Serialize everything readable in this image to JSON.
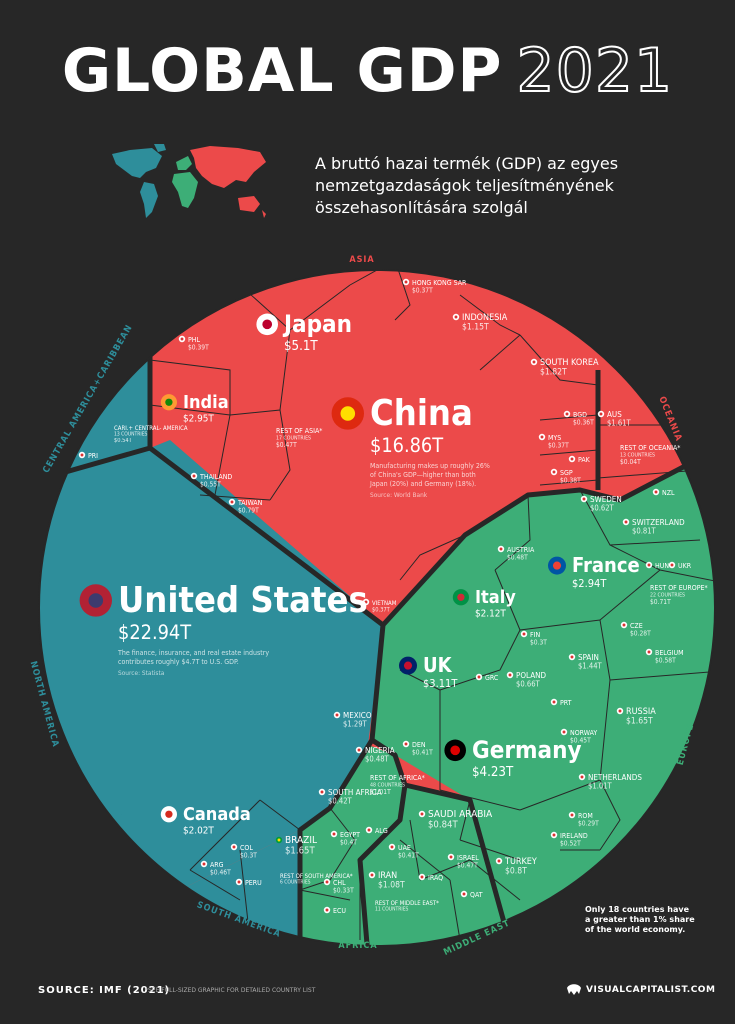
{
  "header": {
    "title_main": "GLOBAL GDP",
    "title_year": "2021",
    "subtitle": "A bruttó hazai termék (GDP) az egyes nemzetgazdaságok teljesítményének összehasonlítására szolgál"
  },
  "footer": {
    "source": "SOURCE: IMF (2021)",
    "footnote": "*SEE FULL-SIZED GRAPHIC FOR DETAILED COUNTRY LIST",
    "credit": "VISUALCAPITALIST.COM",
    "note": "Only 18 countries have a greater than 1% share of the world economy."
  },
  "colors": {
    "background": "#272727",
    "asia": "#EC4A4A",
    "north_america": "#2E8E9B",
    "europe": "#3DAE77",
    "oceania": "#EC4A4A",
    "south_america": "#2E8E9B",
    "africa": "#3DAE77",
    "middle_east": "#3DAE77",
    "central_america": "#2E8E9B"
  },
  "chart_data": {
    "type": "voronoi treemap",
    "regions": [
      "ASIA",
      "OCEANIA",
      "EUROPE",
      "MIDDLE EAST",
      "AFRICA",
      "SOUTH AMERICA",
      "NORTH AMERICA",
      "CENTRAL AMERICA+CARIBBEAN"
    ],
    "countries": [
      {
        "name": "China",
        "value": "$16.86T",
        "region": "Asia",
        "note": "Manufacturing makes up roughly 26% of China's GDP—higher than both Japan (20%) and Germany (18%).",
        "note_source": "Source: World Bank"
      },
      {
        "name": "Japan",
        "value": "$5.1T",
        "region": "Asia"
      },
      {
        "name": "India",
        "value": "$2.95T",
        "region": "Asia"
      },
      {
        "name": "INDONESIA",
        "value": "$1.15T",
        "region": "Asia"
      },
      {
        "name": "SOUTH KOREA",
        "value": "$1.82T",
        "region": "Asia"
      },
      {
        "name": "HONG KONG SAR",
        "value": "$0.37T",
        "region": "Asia"
      },
      {
        "name": "PHL",
        "value": "$0.39T",
        "region": "Asia"
      },
      {
        "name": "REST OF ASIA*",
        "value": "$0.47T",
        "sub": "17 COUNTRIES",
        "region": "Asia"
      },
      {
        "name": "THAILAND",
        "value": "$0.55T",
        "region": "Asia"
      },
      {
        "name": "TAIWAN",
        "value": "$0.79T",
        "region": "Asia"
      },
      {
        "name": "BGD",
        "value": "$0.36T",
        "region": "Asia"
      },
      {
        "name": "MYS",
        "value": "$0.37T",
        "region": "Asia"
      },
      {
        "name": "PAK",
        "region": "Asia"
      },
      {
        "name": "SGP",
        "value": "$0.38T",
        "region": "Asia"
      },
      {
        "name": "VIETNAM",
        "value": "$0.37T",
        "region": "Asia"
      },
      {
        "name": "AUS",
        "value": "$1.61T",
        "region": "Oceania"
      },
      {
        "name": "REST OF OCEANIA*",
        "value": "$0.04T",
        "sub": "13 COUNTRIES",
        "region": "Oceania"
      },
      {
        "name": "NZL",
        "region": "Oceania"
      },
      {
        "name": "United States",
        "value": "$22.94T",
        "region": "North America",
        "note": "The finance, insurance, and real estate industry contributes roughly $4.7T to U.S. GDP.",
        "note_source": "Source: Statista"
      },
      {
        "name": "Canada",
        "value": "$2.02T",
        "region": "North America"
      },
      {
        "name": "MEXICO",
        "value": "$1.29T",
        "region": "North America"
      },
      {
        "name": "CARI.+ CENTRAL- AMERICA",
        "value": "$0.54T",
        "sub": "13 COUNTRIES",
        "region": "Central America+Caribbean"
      },
      {
        "name": "PRI",
        "region": "Central America+Caribbean"
      },
      {
        "name": "Germany",
        "value": "$4.23T",
        "region": "Europe"
      },
      {
        "name": "UK",
        "value": "$3.11T",
        "region": "Europe"
      },
      {
        "name": "France",
        "value": "$2.94T",
        "region": "Europe"
      },
      {
        "name": "Italy",
        "value": "$2.12T",
        "region": "Europe"
      },
      {
        "name": "RUSSIA",
        "value": "$1.65T",
        "region": "Europe"
      },
      {
        "name": "SPAIN",
        "value": "$1.44T",
        "region": "Europe"
      },
      {
        "name": "NETHERLANDS",
        "value": "$1.01T",
        "region": "Europe"
      },
      {
        "name": "SWITZERLAND",
        "value": "$0.81T",
        "region": "Europe"
      },
      {
        "name": "POLAND",
        "value": "$0.66T",
        "region": "Europe"
      },
      {
        "name": "SWEDEN",
        "value": "$0.62T",
        "region": "Europe"
      },
      {
        "name": "BELGIUM",
        "value": "$0.58T",
        "region": "Europe"
      },
      {
        "name": "IRELAND",
        "value": "$0.52T",
        "region": "Europe"
      },
      {
        "name": "AUSTRIA",
        "value": "$0.48T",
        "region": "Europe"
      },
      {
        "name": "NORWAY",
        "value": "$0.45T",
        "region": "Europe"
      },
      {
        "name": "DEN",
        "value": "$0.41T",
        "region": "Europe"
      },
      {
        "name": "FIN",
        "value": "$0.3T",
        "region": "Europe"
      },
      {
        "name": "ROM",
        "value": "$0.29T",
        "region": "Europe"
      },
      {
        "name": "CZE",
        "value": "$0.28T",
        "region": "Europe"
      },
      {
        "name": "REST OF EUROPE*",
        "value": "$0.71T",
        "sub": "22 COUNTRIES",
        "region": "Europe"
      },
      {
        "name": "HUN",
        "region": "Europe"
      },
      {
        "name": "UKR",
        "region": "Europe"
      },
      {
        "name": "GRC",
        "region": "Europe"
      },
      {
        "name": "PRT",
        "region": "Europe"
      },
      {
        "name": "SAUDI ARABIA",
        "value": "$0.84T",
        "region": "Middle East"
      },
      {
        "name": "TURKEY",
        "value": "$0.8T",
        "region": "Middle East"
      },
      {
        "name": "ISRAEL",
        "value": "$0.47T",
        "region": "Middle East"
      },
      {
        "name": "UAE",
        "value": "$0.41T",
        "region": "Middle East"
      },
      {
        "name": "IRAN",
        "value": "$1.08T",
        "region": "Middle East"
      },
      {
        "name": "IRAQ",
        "region": "Middle East"
      },
      {
        "name": "QAT",
        "region": "Middle East"
      },
      {
        "name": "REST OF MIDDLE EAST*",
        "sub": "11 COUNTRIES",
        "region": "Middle East"
      },
      {
        "name": "NIGERIA",
        "value": "$0.48T",
        "region": "Africa"
      },
      {
        "name": "SOUTH AFRICA",
        "value": "$0.42T",
        "region": "Africa"
      },
      {
        "name": "EGYPT",
        "value": "$0.4T",
        "region": "Africa"
      },
      {
        "name": "ALG",
        "region": "Africa"
      },
      {
        "name": "REST OF AFRICA*",
        "value": "$1.01T",
        "sub": "48 COUNTRIES",
        "region": "Africa"
      },
      {
        "name": "BRAZIL",
        "value": "$1.65T",
        "region": "South America"
      },
      {
        "name": "ARG",
        "value": "$0.46T",
        "region": "South America"
      },
      {
        "name": "COL",
        "value": "$0.3T",
        "region": "South America"
      },
      {
        "name": "CHL",
        "value": "$0.33T",
        "region": "South America"
      },
      {
        "name": "PERU",
        "region": "South America"
      },
      {
        "name": "ECU",
        "region": "South America"
      },
      {
        "name": "REST OF SOUTH AMERICA*",
        "sub": "6 COUNTRIES",
        "region": "South America"
      }
    ]
  }
}
